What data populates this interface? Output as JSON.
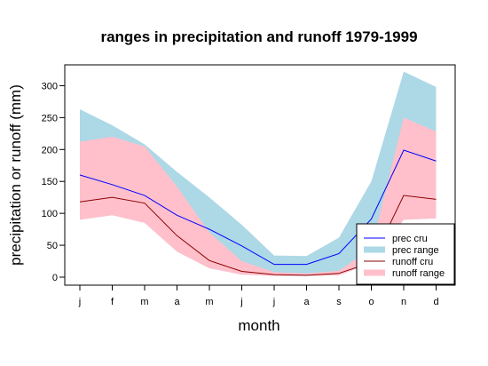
{
  "chart_data": {
    "type": "area",
    "title": "ranges in precipitation and runoff 1979-1999",
    "xlabel": "month",
    "ylabel": "precipitation or runoff (mm)",
    "categories": [
      "j",
      "f",
      "m",
      "a",
      "m",
      "j",
      "j",
      "a",
      "s",
      "o",
      "n",
      "d"
    ],
    "ylim": [
      -10,
      335
    ],
    "yticks": [
      0,
      50,
      100,
      150,
      200,
      250,
      300
    ],
    "grid": false,
    "legend_position": "bottom-right",
    "series": [
      {
        "name": "prec cru",
        "kind": "line",
        "color": "#0000ff",
        "values": [
          160,
          145,
          128,
          97,
          75,
          49,
          20,
          20,
          37,
          91,
          199,
          182
        ]
      },
      {
        "name": "prec range",
        "kind": "band",
        "color": "#add8e6",
        "upper": [
          263,
          238,
          208,
          165,
          125,
          82,
          34,
          33,
          62,
          150,
          322,
          298
        ],
        "lower": [
          90,
          97,
          85,
          40,
          14,
          4,
          2,
          2,
          3,
          22,
          90,
          92
        ]
      },
      {
        "name": "runoff cru",
        "kind": "line",
        "color": "#8b0000",
        "values": [
          118,
          125,
          116,
          65,
          26,
          9,
          4,
          3,
          6,
          23,
          128,
          122
        ]
      },
      {
        "name": "runoff range",
        "kind": "band",
        "color": "#ffc0cb",
        "upper": [
          212,
          220,
          205,
          142,
          70,
          25,
          8,
          6,
          10,
          45,
          250,
          228
        ],
        "lower": [
          90,
          97,
          85,
          40,
          14,
          4,
          2,
          2,
          3,
          22,
          90,
          92
        ]
      }
    ]
  }
}
